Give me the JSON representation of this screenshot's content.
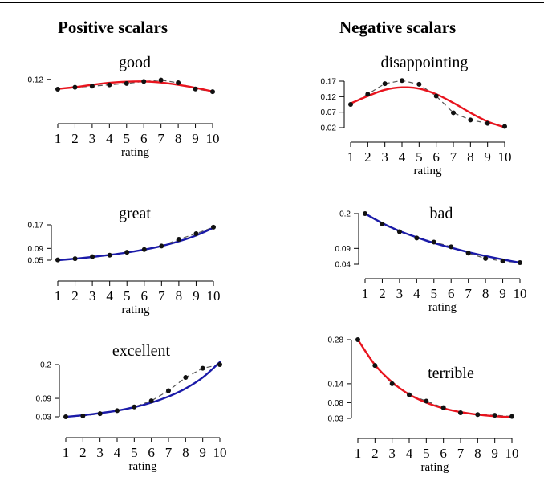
{
  "column_titles": {
    "left": "Positive scalars",
    "right": "Negative scalars"
  },
  "chart_data": [
    {
      "type": "line",
      "title": "good",
      "xlabel": "rating",
      "ylabel": "",
      "x": [
        1,
        2,
        3,
        4,
        5,
        6,
        7,
        8,
        9,
        10
      ],
      "xticks": [
        1,
        2,
        3,
        4,
        5,
        6,
        7,
        8,
        9,
        10
      ],
      "yticks": [
        0.12
      ],
      "ylim": [
        0.104,
        0.124
      ],
      "series": [
        {
          "kind": "observed",
          "values": [
            0.1128,
            0.1142,
            0.115,
            0.116,
            0.117,
            0.1185,
            0.1195,
            0.1175,
            0.113,
            0.111
          ]
        },
        {
          "kind": "fit",
          "values": [
            0.113,
            0.1143,
            0.116,
            0.1175,
            0.1183,
            0.1185,
            0.1177,
            0.116,
            0.1138,
            0.1112
          ]
        }
      ],
      "colors": {
        "fit": "#e8141e",
        "observed": "#111111",
        "dashed": "#555555"
      }
    },
    {
      "type": "line",
      "title": "great",
      "xlabel": "rating",
      "ylabel": "",
      "x": [
        1,
        2,
        3,
        4,
        5,
        6,
        7,
        8,
        9,
        10
      ],
      "xticks": [
        1,
        2,
        3,
        4,
        5,
        6,
        7,
        8,
        9,
        10
      ],
      "yticks": [
        0.05,
        0.09,
        0.17
      ],
      "ylim": [
        0.05,
        0.17
      ],
      "series": [
        {
          "kind": "observed",
          "values": [
            0.051,
            0.055,
            0.062,
            0.067,
            0.077,
            0.086,
            0.098,
            0.121,
            0.14,
            0.162
          ]
        },
        {
          "kind": "fit",
          "values": [
            0.05,
            0.055,
            0.061,
            0.068,
            0.076,
            0.086,
            0.098,
            0.114,
            0.134,
            0.16
          ]
        }
      ],
      "colors": {
        "fit": "#1a1aa8",
        "observed": "#111111",
        "dashed": "#555555"
      }
    },
    {
      "type": "line",
      "title": "excellent",
      "xlabel": "rating",
      "ylabel": "",
      "x": [
        1,
        2,
        3,
        4,
        5,
        6,
        7,
        8,
        9,
        10
      ],
      "xticks": [
        1,
        2,
        3,
        4,
        5,
        6,
        7,
        8,
        9,
        10
      ],
      "yticks": [
        0.03,
        0.09,
        0.2
      ],
      "ylim": [
        0.03,
        0.2
      ],
      "series": [
        {
          "kind": "observed",
          "values": [
            0.03,
            0.033,
            0.04,
            0.05,
            0.062,
            0.082,
            0.115,
            0.158,
            0.188,
            0.2
          ]
        },
        {
          "kind": "fit",
          "values": [
            0.03,
            0.035,
            0.042,
            0.05,
            0.061,
            0.076,
            0.096,
            0.122,
            0.158,
            0.208
          ]
        }
      ],
      "colors": {
        "fit": "#1a1aa8",
        "observed": "#111111",
        "dashed": "#555555"
      }
    },
    {
      "type": "line",
      "title": "disappointing",
      "xlabel": "rating",
      "ylabel": "",
      "x": [
        1,
        2,
        3,
        4,
        5,
        6,
        7,
        8,
        9,
        10
      ],
      "xticks": [
        1,
        2,
        3,
        4,
        5,
        6,
        7,
        8,
        9,
        10
      ],
      "yticks": [
        0.02,
        0.07,
        0.12,
        0.17
      ],
      "ylim": [
        0.02,
        0.17
      ],
      "series": [
        {
          "kind": "observed",
          "values": [
            0.095,
            0.128,
            0.162,
            0.172,
            0.16,
            0.122,
            0.068,
            0.045,
            0.034,
            0.024
          ]
        },
        {
          "kind": "fit",
          "values": [
            0.098,
            0.122,
            0.142,
            0.15,
            0.146,
            0.128,
            0.1,
            0.068,
            0.04,
            0.021
          ]
        }
      ],
      "colors": {
        "fit": "#e8141e",
        "observed": "#111111",
        "dashed": "#555555"
      }
    },
    {
      "type": "line",
      "title": "bad",
      "xlabel": "rating",
      "ylabel": "",
      "x": [
        1,
        2,
        3,
        4,
        5,
        6,
        7,
        8,
        9,
        10
      ],
      "xticks": [
        1,
        2,
        3,
        4,
        5,
        6,
        7,
        8,
        9,
        10
      ],
      "yticks": [
        0.04,
        0.09,
        0.2
      ],
      "ylim": [
        0.04,
        0.2
      ],
      "series": [
        {
          "kind": "observed",
          "values": [
            0.2,
            0.167,
            0.143,
            0.123,
            0.11,
            0.095,
            0.075,
            0.058,
            0.05,
            0.045
          ]
        },
        {
          "kind": "fit",
          "values": [
            0.2,
            0.17,
            0.145,
            0.125,
            0.107,
            0.092,
            0.078,
            0.066,
            0.055,
            0.045
          ]
        }
      ],
      "colors": {
        "fit": "#1a1aa8",
        "observed": "#111111",
        "dashed": "#555555"
      }
    },
    {
      "type": "line",
      "title": "terrible",
      "xlabel": "rating",
      "ylabel": "",
      "x": [
        1,
        2,
        3,
        4,
        5,
        6,
        7,
        8,
        9,
        10
      ],
      "xticks": [
        1,
        2,
        3,
        4,
        5,
        6,
        7,
        8,
        9,
        10
      ],
      "yticks": [
        0.03,
        0.08,
        0.14,
        0.28
      ],
      "ylim": [
        0.03,
        0.28
      ],
      "series": [
        {
          "kind": "observed",
          "values": [
            0.28,
            0.198,
            0.14,
            0.105,
            0.085,
            0.064,
            0.048,
            0.042,
            0.04,
            0.036
          ]
        },
        {
          "kind": "fit",
          "values": [
            0.28,
            0.2,
            0.145,
            0.106,
            0.08,
            0.062,
            0.05,
            0.042,
            0.037,
            0.034
          ]
        }
      ],
      "colors": {
        "fit": "#e8141e",
        "observed": "#111111",
        "dashed": "#555555"
      }
    }
  ]
}
